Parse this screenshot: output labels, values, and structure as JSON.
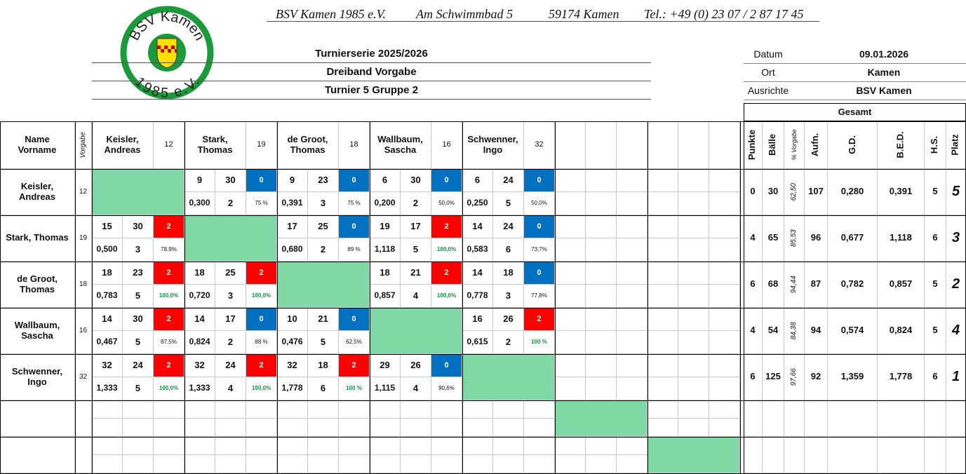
{
  "letterhead": [
    "BSV Kamen 1985 e.V.",
    "Am Schwimmbad 5",
    "59174 Kamen",
    "Tel.: +49 (0) 23 07 / 2 87 17 45"
  ],
  "logo": {
    "top": "BSV Kamen",
    "bottom": "1985 e.V."
  },
  "titles": [
    "Turnierserie 2025/2026",
    "Dreiband Vorgabe",
    "Turnier 5  Gruppe 2"
  ],
  "info": [
    {
      "label": "Datum",
      "value": "09.01.2026"
    },
    {
      "label": "Ort",
      "value": "Kamen"
    },
    {
      "label": "Ausrichte",
      "value": "BSV Kamen"
    }
  ],
  "table": {
    "name_header": [
      "Name",
      "Vorname"
    ],
    "vorgabe_header": "Vorgabe",
    "totals_header": "Gesamt",
    "totals_columns": [
      "Punkte",
      "Bälle",
      "% Vorgabe",
      "Aufn.",
      "G.D.",
      "B.E.D.",
      "H.S.",
      "Platz"
    ],
    "colors": {
      "win": "#ff0000",
      "loss": "#0070c0",
      "diagonal": "#80d8a4",
      "full": "#009a3a"
    },
    "players": [
      {
        "name": "Keisler, Andreas",
        "vorgabe": "12",
        "results": [
          null,
          [
            "9",
            "30",
            "0",
            "0,300",
            "2",
            "75 %"
          ],
          [
            "9",
            "23",
            "0",
            "0,391",
            "3",
            "75 %"
          ],
          [
            "6",
            "30",
            "0",
            "0,200",
            "2",
            "50,0%"
          ],
          [
            "6",
            "24",
            "0",
            "0,250",
            "5",
            "50,0%"
          ]
        ],
        "totals": [
          "0",
          "30",
          "62,50",
          "107",
          "0,280",
          "0,391",
          "5",
          "5"
        ]
      },
      {
        "name": "Stark, Thomas",
        "vorgabe": "19",
        "results": [
          [
            "15",
            "30",
            "2",
            "0,500",
            "3",
            "78,9%"
          ],
          null,
          [
            "17",
            "25",
            "0",
            "0,680",
            "2",
            "89 %"
          ],
          [
            "19",
            "17",
            "2",
            "1,118",
            "5",
            "100,0%"
          ],
          [
            "14",
            "24",
            "0",
            "0,583",
            "6",
            "73,7%"
          ]
        ],
        "totals": [
          "4",
          "65",
          "85,53",
          "96",
          "0,677",
          "1,118",
          "6",
          "3"
        ]
      },
      {
        "name": "de Groot, Thomas",
        "vorgabe": "18",
        "results": [
          [
            "18",
            "23",
            "2",
            "0,783",
            "5",
            "100,0%"
          ],
          [
            "18",
            "25",
            "2",
            "0,720",
            "3",
            "100,0%"
          ],
          null,
          [
            "18",
            "21",
            "2",
            "0,857",
            "4",
            "100,0%"
          ],
          [
            "14",
            "18",
            "0",
            "0,778",
            "3",
            "77,8%"
          ]
        ],
        "totals": [
          "6",
          "68",
          "94,44",
          "87",
          "0,782",
          "0,857",
          "5",
          "2"
        ]
      },
      {
        "name": "Wallbaum, Sascha",
        "vorgabe": "16",
        "results": [
          [
            "14",
            "30",
            "2",
            "0,467",
            "5",
            "87,5%"
          ],
          [
            "14",
            "17",
            "0",
            "0,824",
            "2",
            "88 %"
          ],
          [
            "10",
            "21",
            "0",
            "0,476",
            "5",
            "62,5%"
          ],
          null,
          [
            "16",
            "26",
            "2",
            "0,615",
            "2",
            "100 %"
          ]
        ],
        "totals": [
          "4",
          "54",
          "84,38",
          "94",
          "0,574",
          "0,824",
          "5",
          "4"
        ]
      },
      {
        "name": "Schwenner, Ingo",
        "vorgabe": "32",
        "results": [
          [
            "32",
            "24",
            "2",
            "1,333",
            "5",
            "100,0%"
          ],
          [
            "32",
            "24",
            "2",
            "1,333",
            "4",
            "100,0%"
          ],
          [
            "32",
            "18",
            "2",
            "1,778",
            "6",
            "100 %"
          ],
          [
            "29",
            "26",
            "0",
            "1,115",
            "4",
            "90,6%"
          ],
          null
        ],
        "totals": [
          "6",
          "125",
          "97,66",
          "92",
          "1,359",
          "1,778",
          "6",
          "1"
        ]
      }
    ]
  }
}
